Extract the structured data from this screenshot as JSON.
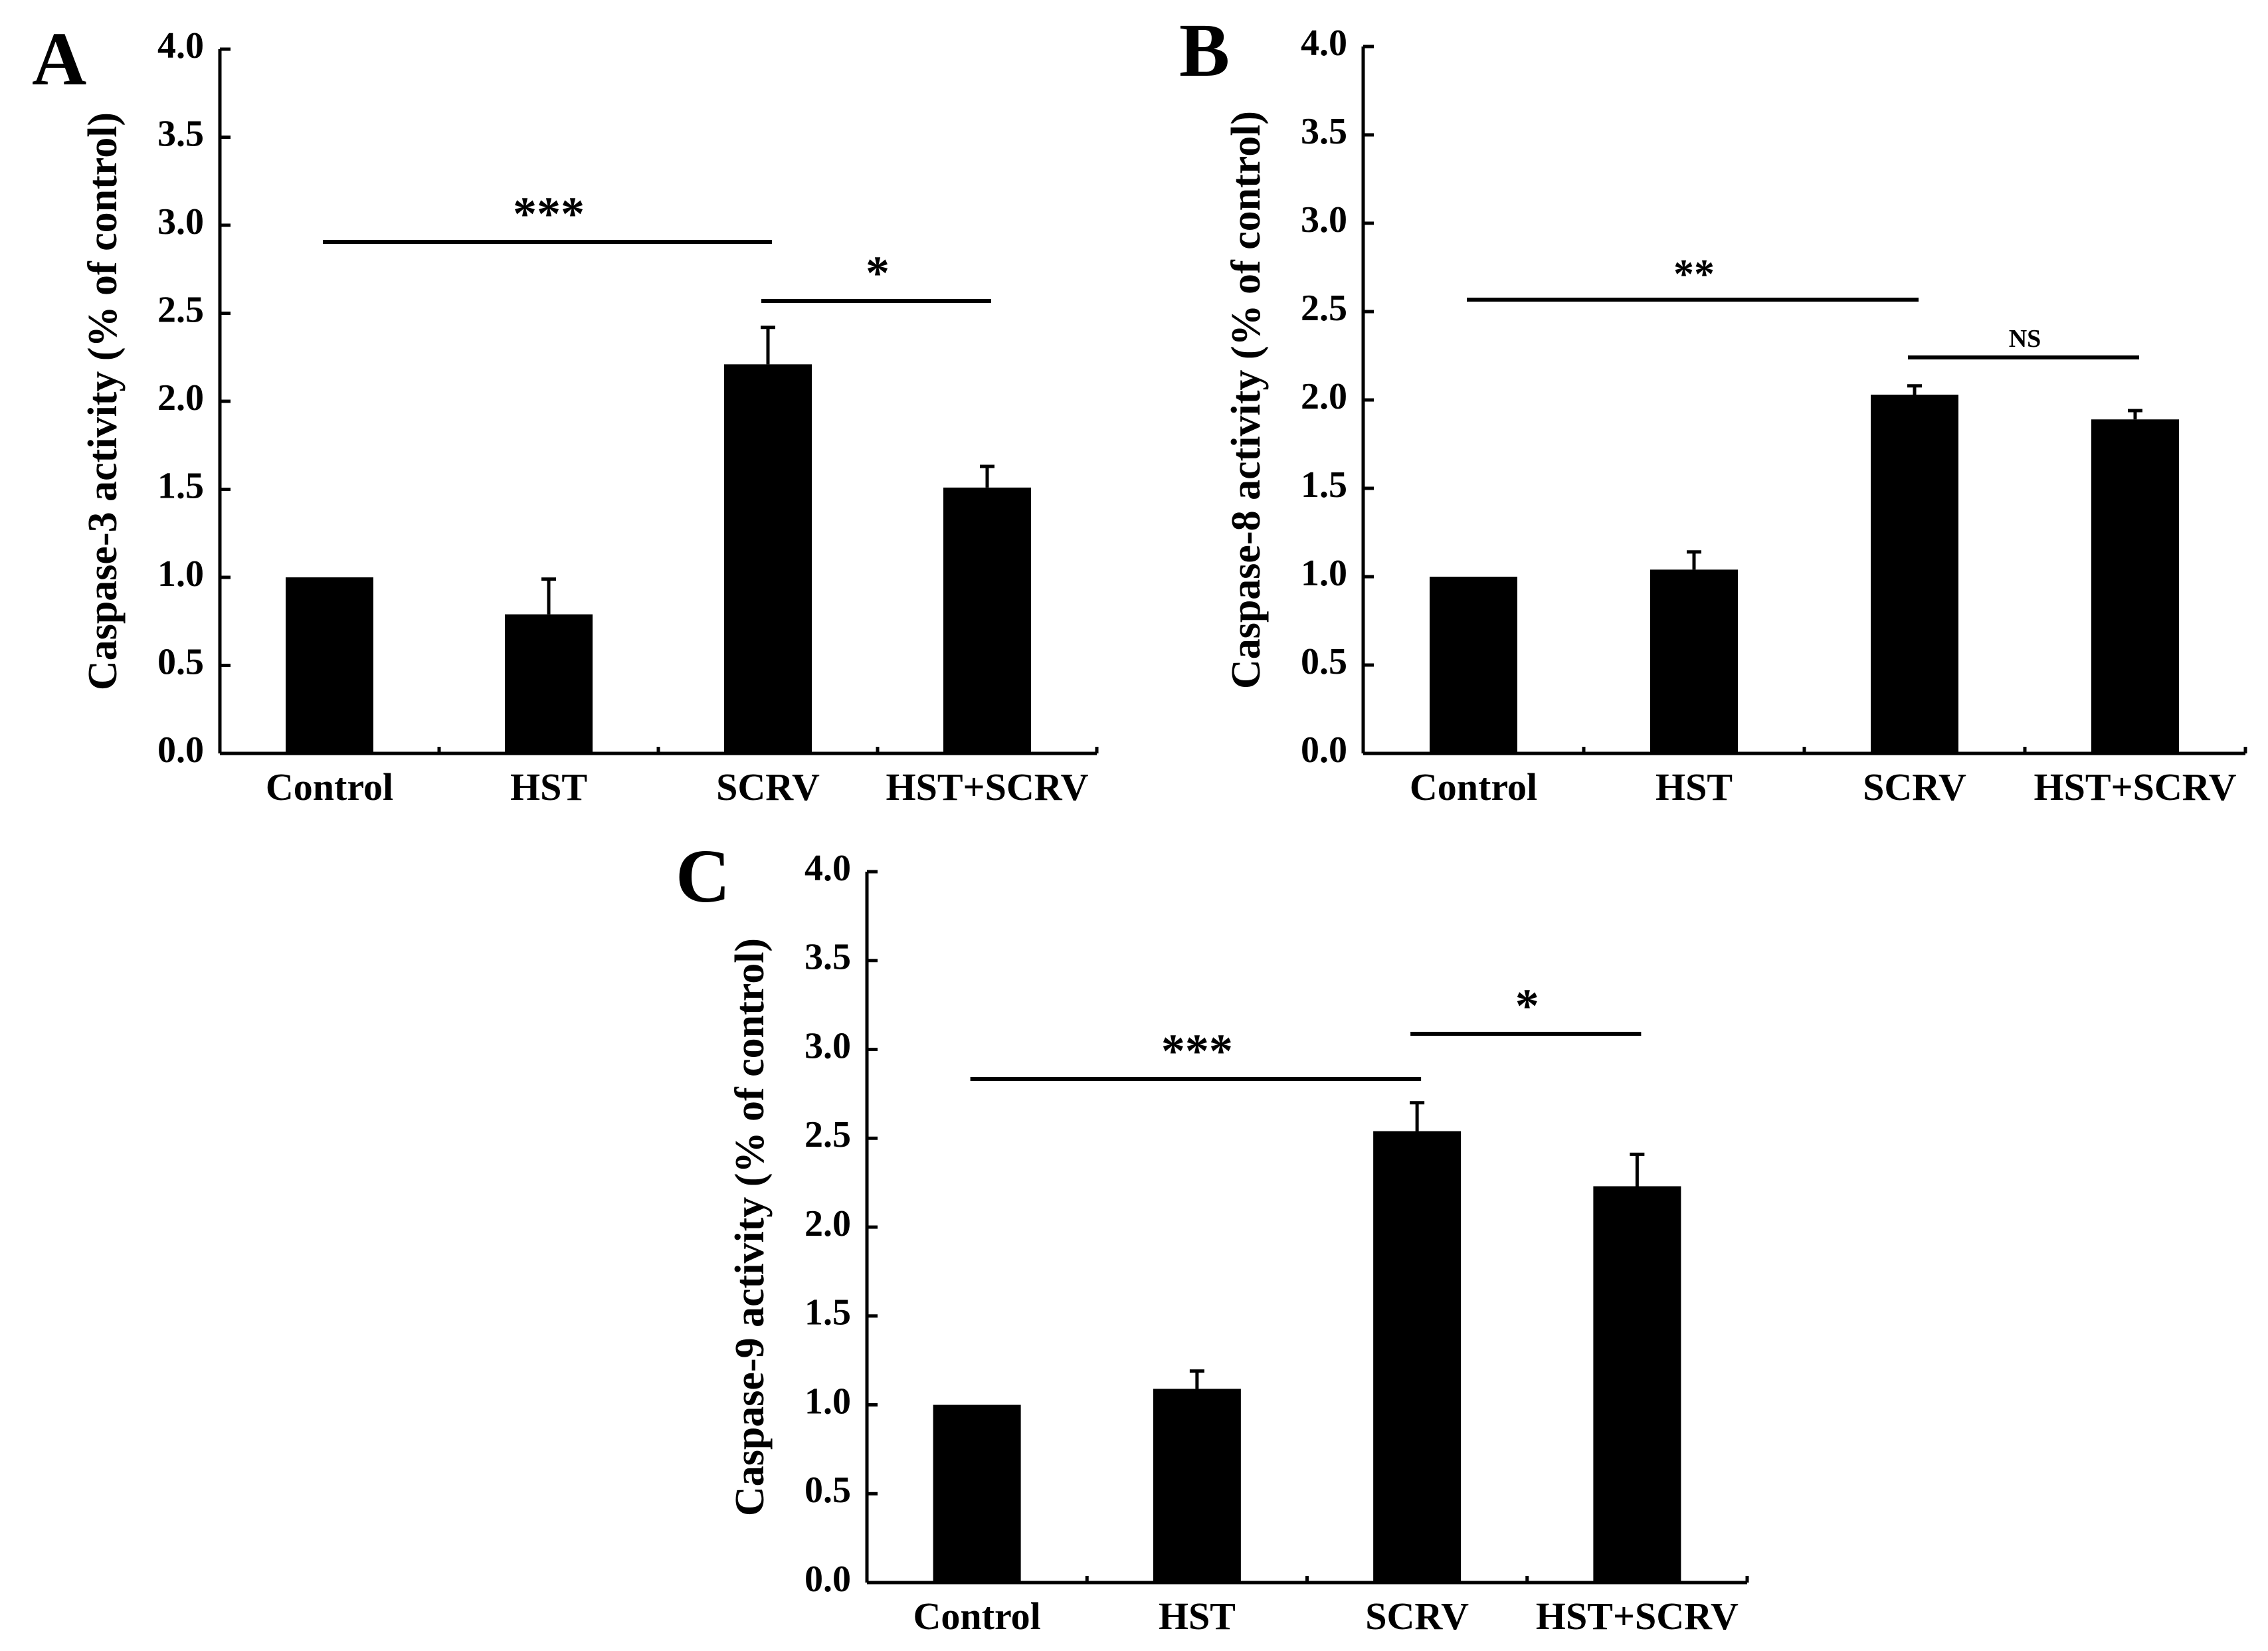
{
  "figure": {
    "panels": [
      {
        "panel_label": "A",
        "ylabel": "Caspase-3 activity (% of control)",
        "significance": [
          {
            "from": "Control",
            "to": "SCRV",
            "label": "***"
          },
          {
            "from": "SCRV",
            "to": "HST+SCRV",
            "label": "*"
          }
        ]
      },
      {
        "panel_label": "B",
        "ylabel": "Caspase-8 activity (% of control)",
        "significance": [
          {
            "from": "Control",
            "to": "SCRV",
            "label": "**"
          },
          {
            "from": "SCRV",
            "to": "HST+SCRV",
            "label": "NS"
          }
        ]
      },
      {
        "panel_label": "C",
        "ylabel": "Caspase-9 activity (% of control)",
        "significance": [
          {
            "from": "Control",
            "to": "SCRV",
            "label": "***"
          },
          {
            "from": "SCRV",
            "to": "HST+SCRV",
            "label": "*"
          }
        ]
      }
    ]
  },
  "chart_data": [
    {
      "type": "bar",
      "categories": [
        "Control",
        "HST",
        "SCRV",
        "HST+SCRV"
      ],
      "values": [
        1.0,
        0.79,
        2.21,
        1.51
      ],
      "errors": [
        0.0,
        0.2,
        0.21,
        0.12
      ],
      "ylabel": "Caspase-3 activity (% of control)",
      "ylim": [
        0,
        4.0
      ],
      "yticks": [
        "0.0",
        "0.5",
        "1.0",
        "1.5",
        "2.0",
        "2.5",
        "3.0",
        "3.5",
        "4.0"
      ],
      "bar_color": "#000000",
      "grid": false
    },
    {
      "type": "bar",
      "categories": [
        "Control",
        "HST",
        "SCRV",
        "HST+SCRV"
      ],
      "values": [
        1.0,
        1.04,
        2.03,
        1.89
      ],
      "errors": [
        0.0,
        0.1,
        0.05,
        0.05
      ],
      "ylabel": "Caspase-8 activity (% of control)",
      "ylim": [
        0,
        4.0
      ],
      "yticks": [
        "0.0",
        "0.5",
        "1.0",
        "1.5",
        "2.0",
        "2.5",
        "3.0",
        "3.5",
        "4.0"
      ],
      "bar_color": "#000000",
      "grid": false
    },
    {
      "type": "bar",
      "categories": [
        "Control",
        "HST",
        "SCRV",
        "HST+SCRV"
      ],
      "values": [
        1.0,
        1.09,
        2.54,
        2.23
      ],
      "errors": [
        0.0,
        0.1,
        0.16,
        0.18
      ],
      "ylabel": "Caspase-9 activity (% of control)",
      "ylim": [
        0,
        4.0
      ],
      "yticks": [
        "0.0",
        "0.5",
        "1.0",
        "1.5",
        "2.0",
        "2.5",
        "3.0",
        "3.5",
        "4.0"
      ],
      "bar_color": "#000000",
      "grid": false
    }
  ]
}
